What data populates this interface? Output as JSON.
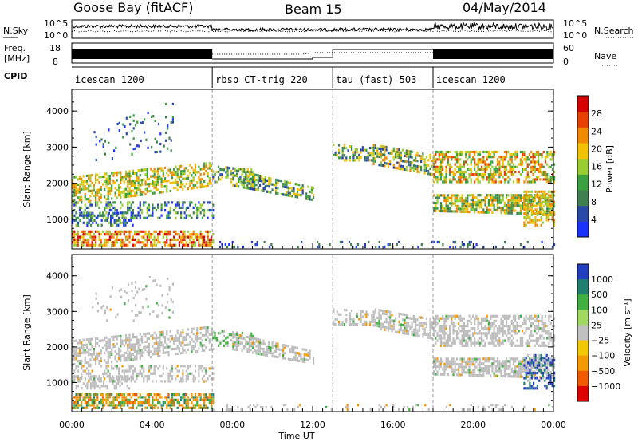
{
  "header": {
    "title": "Goose Bay (fitACF)",
    "beam": "Beam 15",
    "date": "04/May/2014"
  },
  "panel_labels": {
    "nsky": "N.Sky",
    "nsearch": "N.Search",
    "freq_line1": "Freq.",
    "freq_line2": "[MHz]",
    "nave": "Nave",
    "cpid": "CPID"
  },
  "colors": {
    "power_scale": [
      "#1a33ff",
      "#2a4aa8",
      "#3f7f50",
      "#3aa040",
      "#9acd32",
      "#f2c100",
      "#f08a00",
      "#e84000",
      "#d80000"
    ],
    "velocity_scale": [
      "#e00000",
      "#f25a00",
      "#f29a00",
      "#f2c800",
      "#c0c0c0",
      "#a0d860",
      "#40b040",
      "#208070",
      "#2040c0"
    ],
    "grey_scatter": "#bdbdbd"
  },
  "chart_data": [
    {
      "type": "line",
      "name": "noise-panel",
      "series": [
        {
          "name": "N.Sky",
          "description_only": false
        }
      ],
      "left_ticks": [
        "10^5",
        "10^0"
      ],
      "right_ticks": [
        "10^5",
        "10^0"
      ]
    },
    {
      "type": "line",
      "name": "freq-nave-panel",
      "left_ticks": [
        "18",
        "8"
      ],
      "right_ticks": [
        "60",
        "0"
      ],
      "freq_ylim": [
        8,
        18
      ],
      "nave_ylim": [
        0,
        60
      ]
    },
    {
      "type": "table",
      "name": "cpid-bar",
      "segments": [
        {
          "label": "icescan 1200",
          "start_h": 0,
          "end_h": 7
        },
        {
          "label": "rbsp CT-trig 220",
          "start_h": 7,
          "end_h": 13
        },
        {
          "label": "tau (fast) 503",
          "start_h": 13,
          "end_h": 18
        },
        {
          "label": "icescan 1200",
          "start_h": 18,
          "end_h": 24
        }
      ]
    },
    {
      "type": "heatmap",
      "name": "power-panel",
      "ylabel": "Slant Range [km]",
      "ylim": [
        180,
        4600
      ],
      "yticks": [
        1000,
        2000,
        3000,
        4000
      ],
      "xlim": [
        0,
        24
      ],
      "colorbar": {
        "label": "Power [dB]",
        "ticks": [
          4,
          8,
          12,
          16,
          20,
          24,
          28
        ],
        "range": [
          0,
          32
        ]
      }
    },
    {
      "type": "heatmap",
      "name": "velocity-panel",
      "ylabel": "Slant Range [km]",
      "ylim": [
        180,
        4600
      ],
      "yticks": [
        1000,
        2000,
        3000,
        4000
      ],
      "xlim": [
        0,
        24
      ],
      "xlabel": "Time UT",
      "xticks": [
        "00:00",
        "04:00",
        "08:00",
        "12:00",
        "16:00",
        "20:00",
        "00:00"
      ],
      "colorbar": {
        "label": "Velocity [m s-1]",
        "ticks": [
          "1000",
          "500",
          "100",
          "25",
          "-25",
          "-100",
          "-500",
          "-1000"
        ]
      }
    }
  ],
  "axis_text": {
    "noise_left": [
      "10^5",
      "10^0"
    ],
    "noise_right": [
      "10^5",
      "10^0"
    ],
    "freq_left": [
      "18",
      "8"
    ],
    "freq_right": [
      "60",
      "0"
    ],
    "yticks": [
      "1000",
      "2000",
      "3000",
      "4000"
    ],
    "ylabel": "Slant Range [km]",
    "xticks": [
      "00:00",
      "04:00",
      "08:00",
      "12:00",
      "16:00",
      "20:00",
      "00:00"
    ],
    "xlabel": "Time UT",
    "power_ticks": [
      "4",
      "8",
      "12",
      "16",
      "20",
      "24",
      "28"
    ],
    "power_label": "Power [dB]",
    "vel_ticks": [
      "1000",
      "500",
      "100",
      "25",
      "−25",
      "−100",
      "−500",
      "−1000"
    ],
    "vel_label": "Velocity [m s⁻¹]"
  }
}
